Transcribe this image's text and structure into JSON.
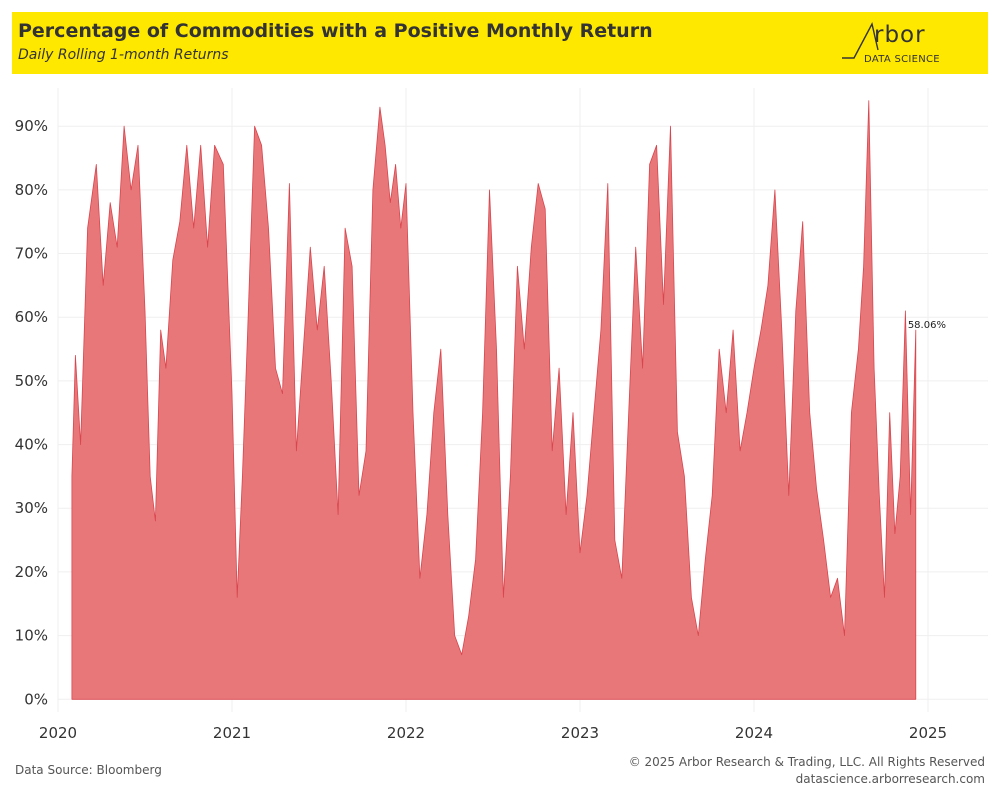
{
  "header": {
    "title": "Percentage of Commodities with a Positive Monthly Return",
    "subtitle": "Daily Rolling 1-month Returns",
    "logo_word": "rbor",
    "logo_sub": "DATA SCIENCE"
  },
  "footer": {
    "source": "Data Source: Bloomberg",
    "copyright": "© 2025 Arbor Research & Trading, LLC. All Rights Reserved",
    "website": "datascience.arborresearch.com"
  },
  "colors": {
    "area": "#e8777a",
    "line": "#d9454d",
    "grid": "#efefef"
  },
  "chart_data": {
    "type": "area",
    "title": "Percentage of Commodities with a Positive Monthly Return",
    "subtitle": "Daily Rolling 1-month Returns",
    "xlabel": "",
    "ylabel": "",
    "xlim": [
      2020.0,
      2025.0
    ],
    "ylim": [
      -0.02,
      0.96
    ],
    "x_ticks": [
      {
        "value": 2020.0,
        "label": "2020"
      },
      {
        "value": 2021.0,
        "label": "2021"
      },
      {
        "value": 2022.0,
        "label": "2022"
      },
      {
        "value": 2023.0,
        "label": "2023"
      },
      {
        "value": 2024.0,
        "label": "2024"
      },
      {
        "value": 2025.0,
        "label": "2025"
      }
    ],
    "y_ticks": [
      {
        "value": 0.0,
        "label": "0%"
      },
      {
        "value": 0.1,
        "label": "10%"
      },
      {
        "value": 0.2,
        "label": "20%"
      },
      {
        "value": 0.3,
        "label": "30%"
      },
      {
        "value": 0.4,
        "label": "40%"
      },
      {
        "value": 0.5,
        "label": "50%"
      },
      {
        "value": 0.6,
        "label": "60%"
      },
      {
        "value": 0.7,
        "label": "70%"
      },
      {
        "value": 0.8,
        "label": "80%"
      },
      {
        "value": 0.9,
        "label": "90%"
      }
    ],
    "grid": true,
    "legend": "none",
    "end_label": "58.06%",
    "x": [
      2020.08,
      2020.1,
      2020.13,
      2020.17,
      2020.22,
      2020.26,
      2020.3,
      2020.34,
      2020.38,
      2020.42,
      2020.46,
      2020.5,
      2020.53,
      2020.56,
      2020.59,
      2020.62,
      2020.66,
      2020.7,
      2020.74,
      2020.78,
      2020.82,
      2020.86,
      2020.9,
      2020.95,
      2021.0,
      2021.03,
      2021.06,
      2021.09,
      2021.13,
      2021.17,
      2021.21,
      2021.25,
      2021.29,
      2021.33,
      2021.37,
      2021.41,
      2021.45,
      2021.49,
      2021.53,
      2021.57,
      2021.61,
      2021.65,
      2021.69,
      2021.73,
      2021.77,
      2021.81,
      2021.85,
      2021.88,
      2021.91,
      2021.94,
      2021.97,
      2022.0,
      2022.04,
      2022.08,
      2022.12,
      2022.16,
      2022.2,
      2022.24,
      2022.28,
      2022.32,
      2022.36,
      2022.4,
      2022.44,
      2022.48,
      2022.52,
      2022.56,
      2022.6,
      2022.64,
      2022.68,
      2022.72,
      2022.76,
      2022.8,
      2022.84,
      2022.88,
      2022.92,
      2022.96,
      2023.0,
      2023.04,
      2023.08,
      2023.12,
      2023.16,
      2023.2,
      2023.24,
      2023.28,
      2023.32,
      2023.36,
      2023.4,
      2023.44,
      2023.48,
      2023.52,
      2023.56,
      2023.6,
      2023.64,
      2023.68,
      2023.72,
      2023.76,
      2023.8,
      2023.84,
      2023.88,
      2023.92,
      2023.96,
      2024.0,
      2024.04,
      2024.08,
      2024.12,
      2024.16,
      2024.2,
      2024.24,
      2024.28,
      2024.32,
      2024.36,
      2024.4,
      2024.44,
      2024.48,
      2024.52,
      2024.56,
      2024.6,
      2024.63,
      2024.66,
      2024.69,
      2024.72,
      2024.75,
      2024.78,
      2024.81,
      2024.84,
      2024.87,
      2024.9,
      2024.93
    ],
    "y": [
      0.35,
      0.54,
      0.4,
      0.74,
      0.84,
      0.65,
      0.78,
      0.71,
      0.9,
      0.8,
      0.87,
      0.61,
      0.35,
      0.28,
      0.58,
      0.52,
      0.69,
      0.75,
      0.87,
      0.74,
      0.87,
      0.71,
      0.87,
      0.84,
      0.48,
      0.16,
      0.35,
      0.58,
      0.9,
      0.87,
      0.74,
      0.52,
      0.48,
      0.81,
      0.39,
      0.55,
      0.71,
      0.58,
      0.68,
      0.5,
      0.29,
      0.74,
      0.68,
      0.32,
      0.39,
      0.8,
      0.93,
      0.87,
      0.78,
      0.84,
      0.74,
      0.81,
      0.45,
      0.19,
      0.29,
      0.45,
      0.55,
      0.29,
      0.1,
      0.07,
      0.13,
      0.22,
      0.45,
      0.8,
      0.55,
      0.16,
      0.35,
      0.68,
      0.55,
      0.71,
      0.81,
      0.77,
      0.39,
      0.52,
      0.29,
      0.45,
      0.23,
      0.32,
      0.45,
      0.58,
      0.81,
      0.25,
      0.19,
      0.45,
      0.71,
      0.52,
      0.84,
      0.87,
      0.62,
      0.9,
      0.42,
      0.35,
      0.16,
      0.1,
      0.22,
      0.32,
      0.55,
      0.45,
      0.58,
      0.39,
      0.45,
      0.52,
      0.58,
      0.65,
      0.8,
      0.58,
      0.32,
      0.61,
      0.75,
      0.45,
      0.33,
      0.25,
      0.16,
      0.19,
      0.1,
      0.45,
      0.55,
      0.68,
      0.94,
      0.52,
      0.32,
      0.16,
      0.45,
      0.26,
      0.35,
      0.61,
      0.29,
      0.58
    ]
  }
}
